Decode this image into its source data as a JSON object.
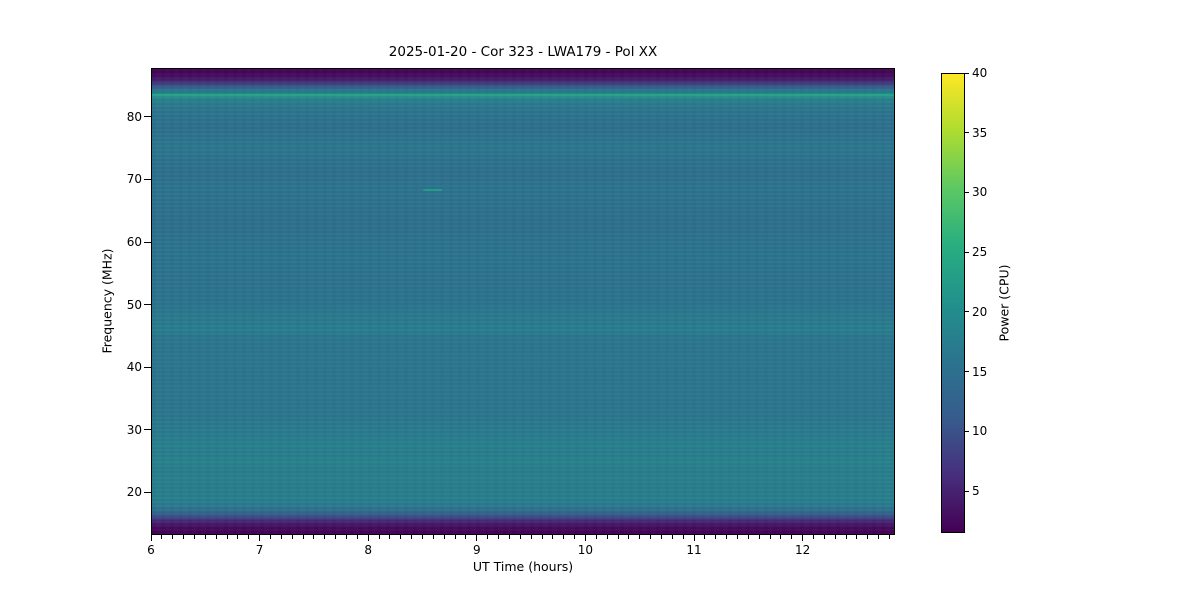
{
  "figure": {
    "background": "#ffffff"
  },
  "chart_data": {
    "type": "heatmap",
    "title": "2025-01-20 - Cor 323 - LWA179 - Pol XX",
    "xlabel": "UT Time (hours)",
    "ylabel": "Frequency (MHz)",
    "x_range": [
      6.0,
      12.85
    ],
    "y_range": [
      13.2,
      87.8
    ],
    "x_major_ticks": [
      6,
      7,
      8,
      9,
      10,
      11,
      12
    ],
    "x_minor_tick_step": 0.1,
    "y_major_ticks": [
      20,
      30,
      40,
      50,
      60,
      70,
      80
    ],
    "grid": false,
    "colorbar": {
      "label": "Power (CPU)",
      "range": [
        1.5,
        40
      ],
      "ticks": [
        5,
        10,
        15,
        20,
        25,
        30,
        35,
        40
      ],
      "colormap": "viridis",
      "viridis_stops": [
        [
          0.0,
          "#440154"
        ],
        [
          0.125,
          "#472f7d"
        ],
        [
          0.25,
          "#365c8d"
        ],
        [
          0.375,
          "#2b748e"
        ],
        [
          0.5,
          "#21918c"
        ],
        [
          0.625,
          "#28ae80"
        ],
        [
          0.75,
          "#5cc863"
        ],
        [
          0.875,
          "#addc30"
        ],
        [
          1.0,
          "#fde725"
        ]
      ]
    },
    "frequency_profile": [
      {
        "mhz": 87.8,
        "power": 1.3
      },
      {
        "mhz": 87.0,
        "power": 2.2
      },
      {
        "mhz": 86.2,
        "power": 4.0
      },
      {
        "mhz": 85.4,
        "power": 8.0
      },
      {
        "mhz": 84.8,
        "power": 13.0
      },
      {
        "mhz": 84.2,
        "power": 16.5
      },
      {
        "mhz": 83.8,
        "power": 19.0
      },
      {
        "mhz": 83.55,
        "power": 24.0
      },
      {
        "mhz": 83.2,
        "power": 19.0
      },
      {
        "mhz": 82.5,
        "power": 17.5
      },
      {
        "mhz": 81.5,
        "power": 16.2
      },
      {
        "mhz": 80.0,
        "power": 15.5
      },
      {
        "mhz": 78.5,
        "power": 15.2
      },
      {
        "mhz": 76.5,
        "power": 15.7
      },
      {
        "mhz": 74.8,
        "power": 16.4
      },
      {
        "mhz": 73.5,
        "power": 15.6
      },
      {
        "mhz": 71.0,
        "power": 15.2
      },
      {
        "mhz": 68.5,
        "power": 15.7
      },
      {
        "mhz": 66.0,
        "power": 15.4
      },
      {
        "mhz": 63.0,
        "power": 15.2
      },
      {
        "mhz": 60.0,
        "power": 15.5
      },
      {
        "mhz": 57.0,
        "power": 15.7
      },
      {
        "mhz": 53.0,
        "power": 15.6
      },
      {
        "mhz": 50.0,
        "power": 15.8
      },
      {
        "mhz": 47.5,
        "power": 16.9
      },
      {
        "mhz": 45.8,
        "power": 17.4
      },
      {
        "mhz": 45.0,
        "power": 16.4
      },
      {
        "mhz": 43.0,
        "power": 16.0
      },
      {
        "mhz": 41.0,
        "power": 16.3
      },
      {
        "mhz": 39.0,
        "power": 15.9
      },
      {
        "mhz": 36.5,
        "power": 16.3
      },
      {
        "mhz": 34.0,
        "power": 15.9
      },
      {
        "mhz": 31.5,
        "power": 16.4
      },
      {
        "mhz": 29.5,
        "power": 16.9
      },
      {
        "mhz": 27.5,
        "power": 17.9
      },
      {
        "mhz": 26.2,
        "power": 17.4
      },
      {
        "mhz": 24.8,
        "power": 18.4
      },
      {
        "mhz": 23.5,
        "power": 17.5
      },
      {
        "mhz": 22.0,
        "power": 18.0
      },
      {
        "mhz": 20.5,
        "power": 17.5
      },
      {
        "mhz": 19.0,
        "power": 18.0
      },
      {
        "mhz": 17.8,
        "power": 16.9
      },
      {
        "mhz": 16.9,
        "power": 14.5
      },
      {
        "mhz": 16.1,
        "power": 10.5
      },
      {
        "mhz": 15.3,
        "power": 5.5
      },
      {
        "mhz": 14.3,
        "power": 2.5
      },
      {
        "mhz": 13.2,
        "power": 1.2
      }
    ],
    "features": [
      {
        "type": "band",
        "mhz": 83.55,
        "power": 24.0
      },
      {
        "type": "transient",
        "mhz": 68.3,
        "ut_hours": 8.5,
        "duration_hours": 0.18,
        "power": 23.0
      }
    ]
  }
}
